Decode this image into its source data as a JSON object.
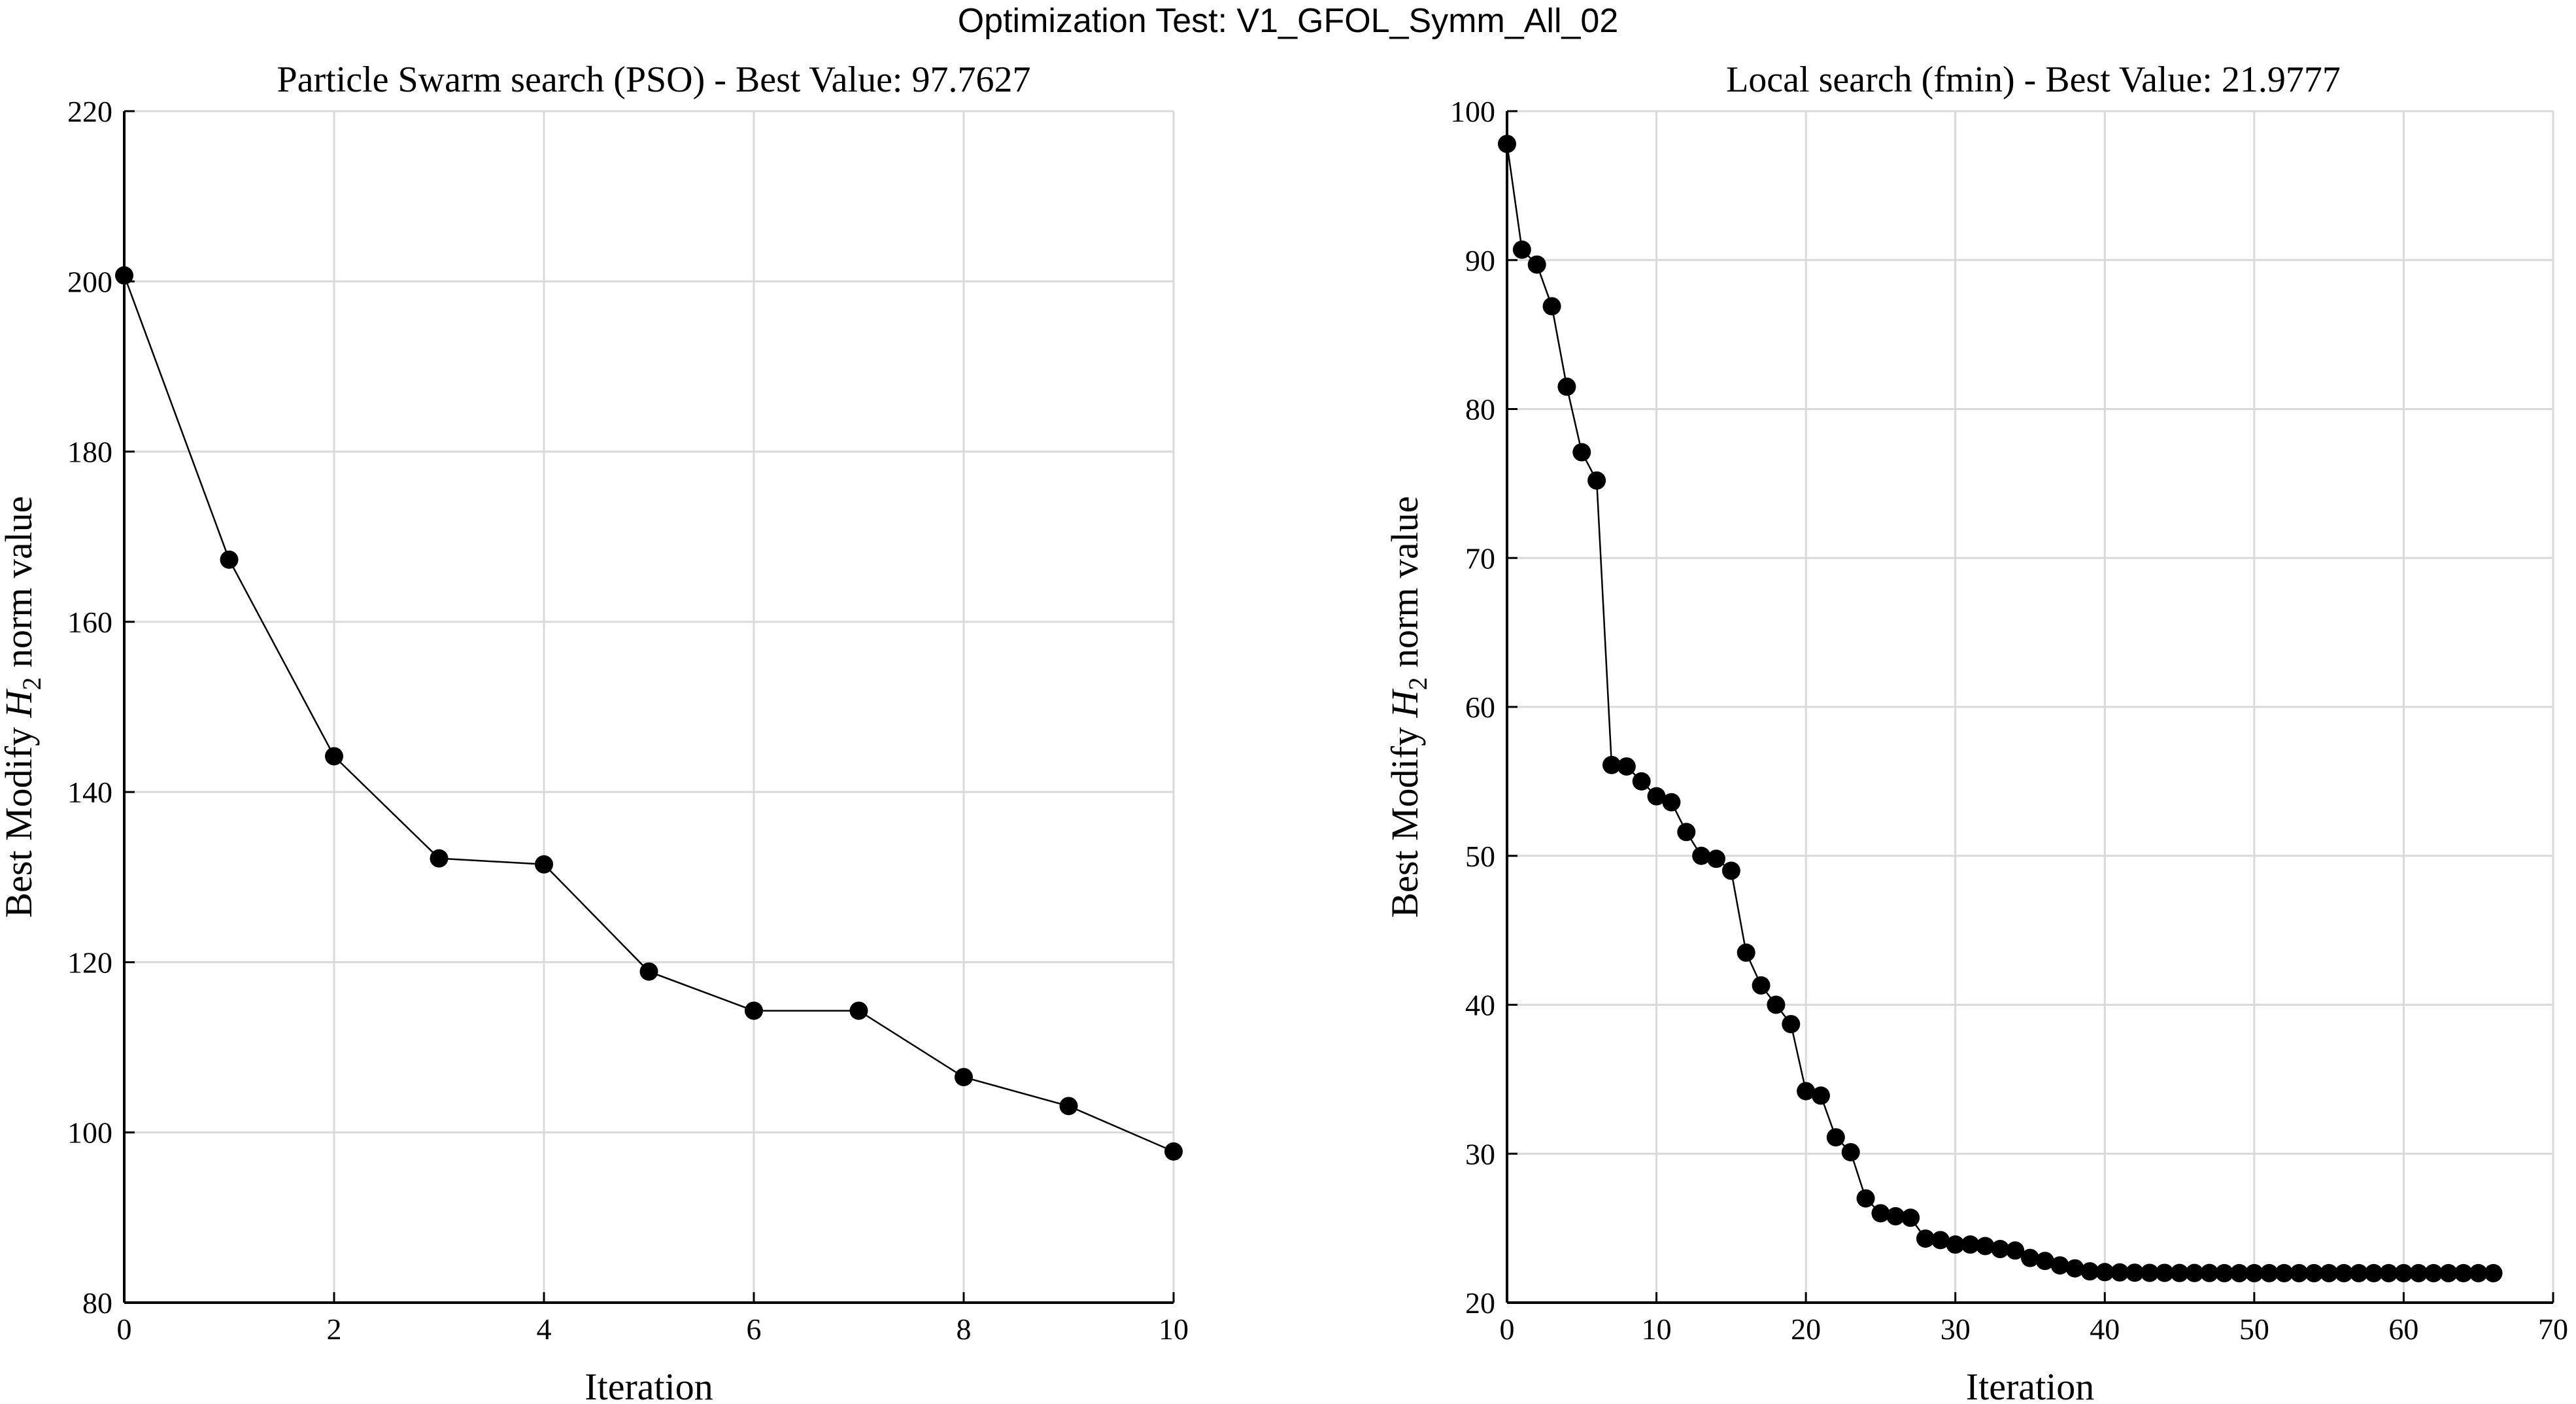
{
  "figure_title": "Optimization Test: V1_GFOL_Symm_All_02",
  "chart_data": [
    {
      "type": "line",
      "title": "Particle Swarm search (PSO) - Best Value: 97.7627",
      "xlabel": "Iteration",
      "ylabel_parts": [
        "Best Modify ",
        "H",
        "2",
        " norm value"
      ],
      "xlim": [
        0,
        10
      ],
      "ylim": [
        80,
        220
      ],
      "xticks": [
        0,
        2,
        4,
        6,
        8,
        10
      ],
      "yticks": [
        80,
        100,
        120,
        140,
        160,
        180,
        200,
        220
      ],
      "grid": true,
      "marker": "circle",
      "color": "#000000",
      "x": [
        0,
        1,
        2,
        3,
        4,
        5,
        6,
        7,
        8,
        9,
        10
      ],
      "y": [
        200.7,
        167.3,
        144.2,
        132.2,
        131.5,
        118.9,
        114.3,
        114.3,
        106.5,
        103.1,
        97.76
      ]
    },
    {
      "type": "line",
      "title": "Local search (fmin) - Best Value: 21.9777",
      "xlabel": "Iteration",
      "ylabel_parts": [
        "Best Modify ",
        "H",
        "2",
        " norm value"
      ],
      "xlim": [
        0,
        70
      ],
      "ylim": [
        20,
        100
      ],
      "xticks": [
        0,
        10,
        20,
        30,
        40,
        50,
        60,
        70
      ],
      "yticks": [
        20,
        30,
        40,
        50,
        60,
        70,
        80,
        90,
        100
      ],
      "grid": true,
      "marker": "circle",
      "color": "#000000",
      "x": [
        0,
        1,
        2,
        3,
        4,
        5,
        6,
        7,
        8,
        9,
        10,
        11,
        12,
        13,
        14,
        15,
        16,
        17,
        18,
        19,
        20,
        21,
        22,
        23,
        24,
        25,
        26,
        27,
        28,
        29,
        30,
        31,
        32,
        33,
        34,
        35,
        36,
        37,
        38,
        39,
        40,
        41,
        42,
        43,
        44,
        45,
        46,
        47,
        48,
        49,
        50,
        51,
        52,
        53,
        54,
        55,
        56,
        57,
        58,
        59,
        60,
        61,
        62,
        63,
        64,
        65,
        66
      ],
      "y": [
        97.8,
        90.7,
        89.7,
        86.9,
        81.5,
        77.1,
        75.2,
        56.1,
        56.0,
        55.0,
        54.0,
        53.6,
        51.6,
        50.0,
        49.8,
        49.0,
        43.5,
        41.3,
        40.0,
        38.7,
        34.2,
        33.9,
        31.1,
        30.1,
        27.0,
        26.0,
        25.8,
        25.7,
        24.3,
        24.2,
        23.9,
        23.9,
        23.8,
        23.6,
        23.5,
        23.0,
        22.8,
        22.5,
        22.3,
        22.1,
        22.05,
        22.03,
        22.01,
        22.0,
        22.0,
        21.99,
        21.99,
        21.99,
        21.98,
        21.98,
        21.98,
        21.98,
        21.98,
        21.98,
        21.98,
        21.98,
        21.98,
        21.98,
        21.98,
        21.98,
        21.98,
        21.98,
        21.98,
        21.98,
        21.98,
        21.98,
        21.98
      ]
    }
  ]
}
